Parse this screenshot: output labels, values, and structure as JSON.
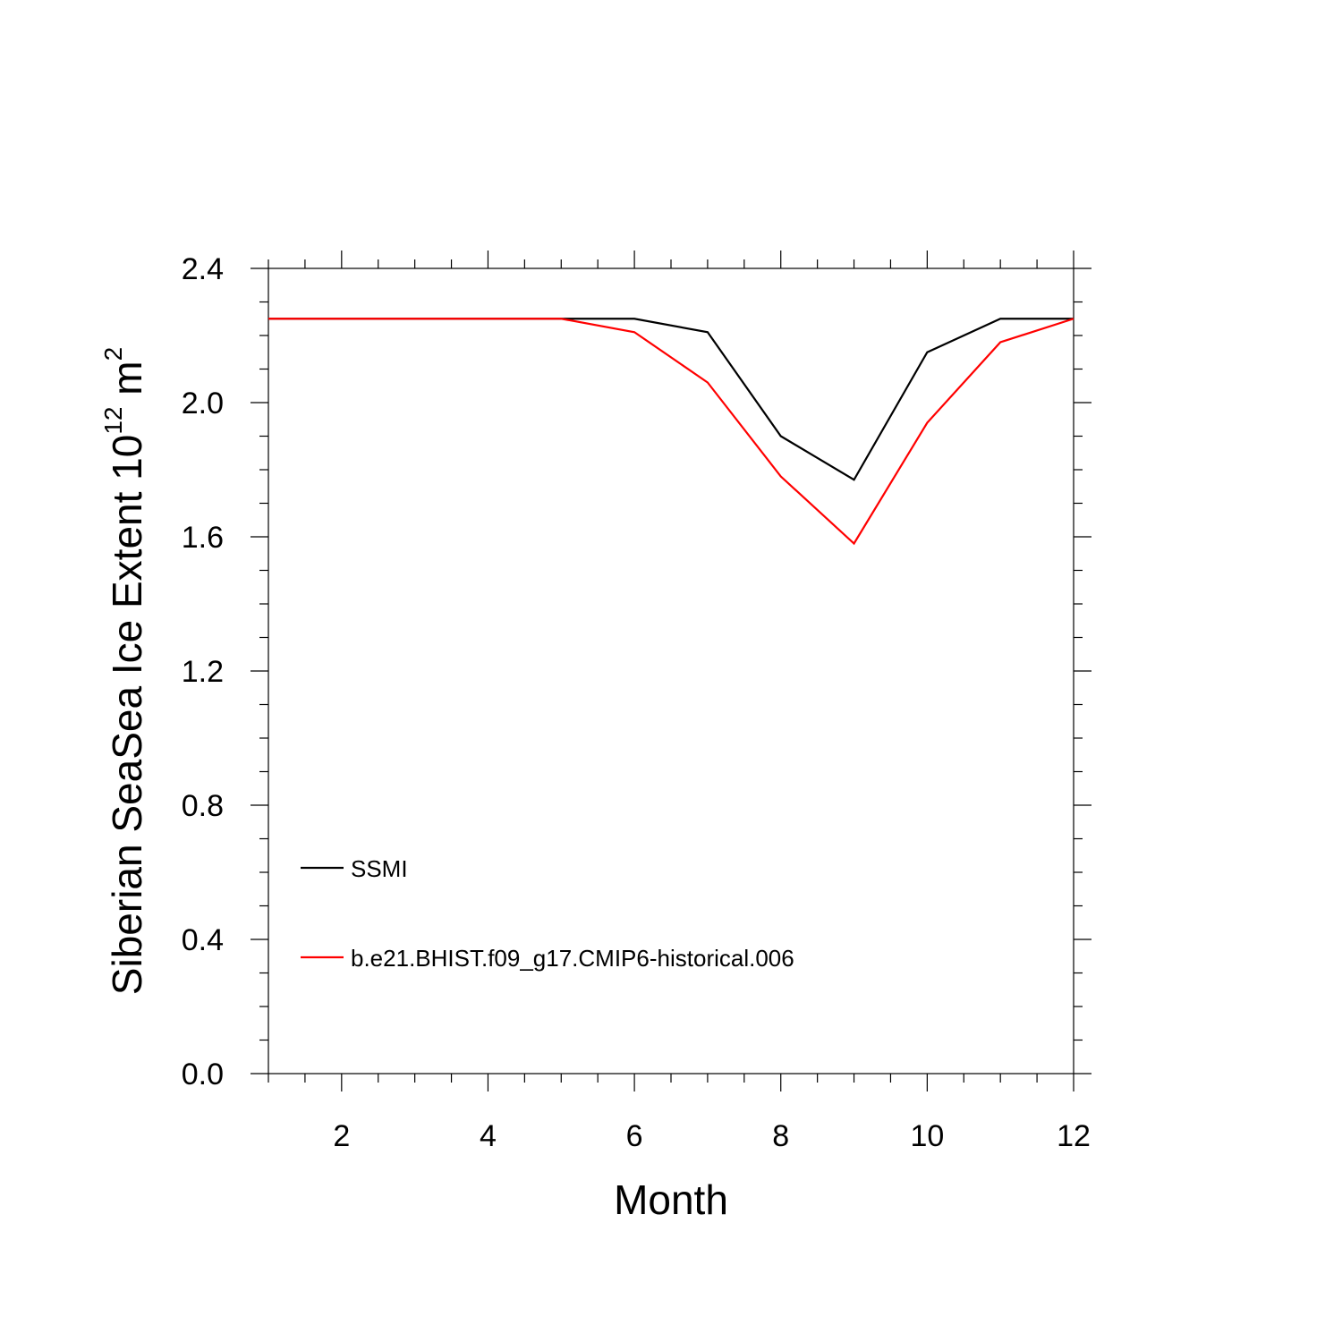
{
  "chart_data": {
    "type": "line",
    "x_label": "Month",
    "y_label": {
      "text": "Siberian SeaSea Ice Extent 10",
      "exponent": "12",
      "unit": " m",
      "unit_exponent": "2"
    },
    "xlim": [
      1,
      12
    ],
    "ylim": [
      0.0,
      2.4
    ],
    "x_ticks": [
      2,
      4,
      6,
      8,
      10,
      12
    ],
    "x_tick_labels": [
      "2",
      "4",
      "6",
      "8",
      "10",
      "12"
    ],
    "y_ticks": [
      0.0,
      0.4,
      0.8,
      1.2,
      1.6,
      2.0,
      2.4
    ],
    "y_tick_labels": [
      "0.0",
      "0.4",
      "0.8",
      "1.2",
      "1.6",
      "2.0",
      "2.4"
    ],
    "x_minor_step": 0.5,
    "y_minor_step": 0.1,
    "grid": false,
    "legend_position": "bottom-left",
    "x": [
      1,
      2,
      3,
      4,
      5,
      6,
      7,
      8,
      9,
      10,
      11,
      12
    ],
    "series": [
      {
        "name": "SSMI",
        "color": "#000000",
        "values": [
          2.25,
          2.25,
          2.25,
          2.25,
          2.25,
          2.25,
          2.21,
          1.9,
          1.77,
          2.15,
          2.25,
          2.25
        ]
      },
      {
        "name": "b.e21.BHIST.f09_g17.CMIP6-historical.006",
        "color": "#ff0000",
        "values": [
          2.25,
          2.25,
          2.25,
          2.25,
          2.25,
          2.21,
          2.06,
          1.78,
          1.58,
          1.94,
          2.18,
          2.25
        ]
      }
    ]
  }
}
